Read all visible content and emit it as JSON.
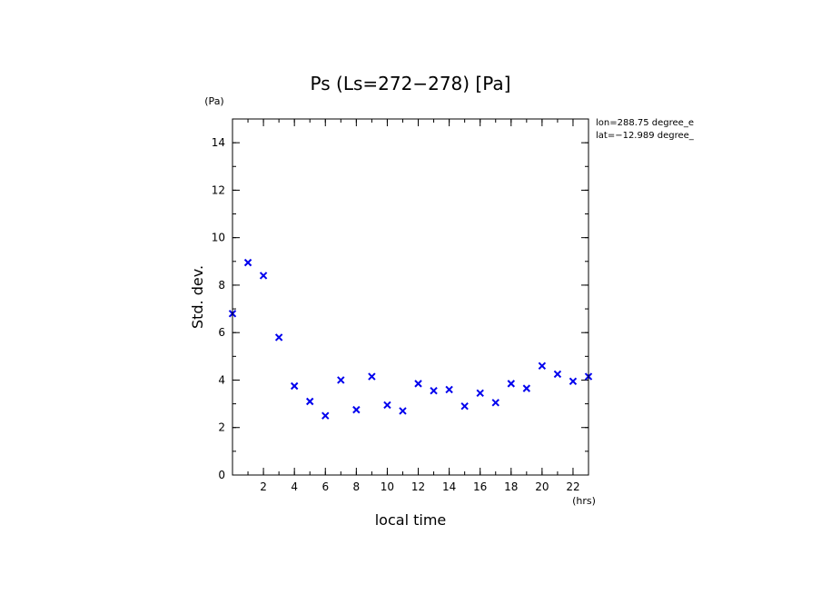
{
  "chart_data": {
    "type": "scatter",
    "title": "Ps (Ls=272−278) [Pa]",
    "xlabel": "local time",
    "ylabel": "Std. dev.",
    "x_unit": "(hrs)",
    "y_unit": "(Pa)",
    "xlim": [
      0,
      23
    ],
    "ylim": [
      0,
      15
    ],
    "x_ticks": [
      2,
      4,
      6,
      8,
      10,
      12,
      14,
      16,
      18,
      20,
      22
    ],
    "y_ticks": [
      0,
      2,
      4,
      6,
      8,
      10,
      12,
      14
    ],
    "marker": "x",
    "color": "#0000ee",
    "annotations": [
      "lon=288.75 degree_e",
      "lat=−12.989 degree_"
    ],
    "series": [
      {
        "name": "Std. dev.",
        "x": [
          0,
          1,
          2,
          3,
          4,
          5,
          6,
          7,
          8,
          9,
          10,
          11,
          12,
          13,
          14,
          15,
          16,
          17,
          18,
          19,
          20,
          21,
          22,
          23
        ],
        "y": [
          6.8,
          8.95,
          8.4,
          5.8,
          3.75,
          3.1,
          2.5,
          4.0,
          2.75,
          4.15,
          2.95,
          2.7,
          3.85,
          3.55,
          3.6,
          2.9,
          3.45,
          3.05,
          3.85,
          3.65,
          4.6,
          4.25,
          3.95,
          4.15
        ]
      }
    ]
  }
}
